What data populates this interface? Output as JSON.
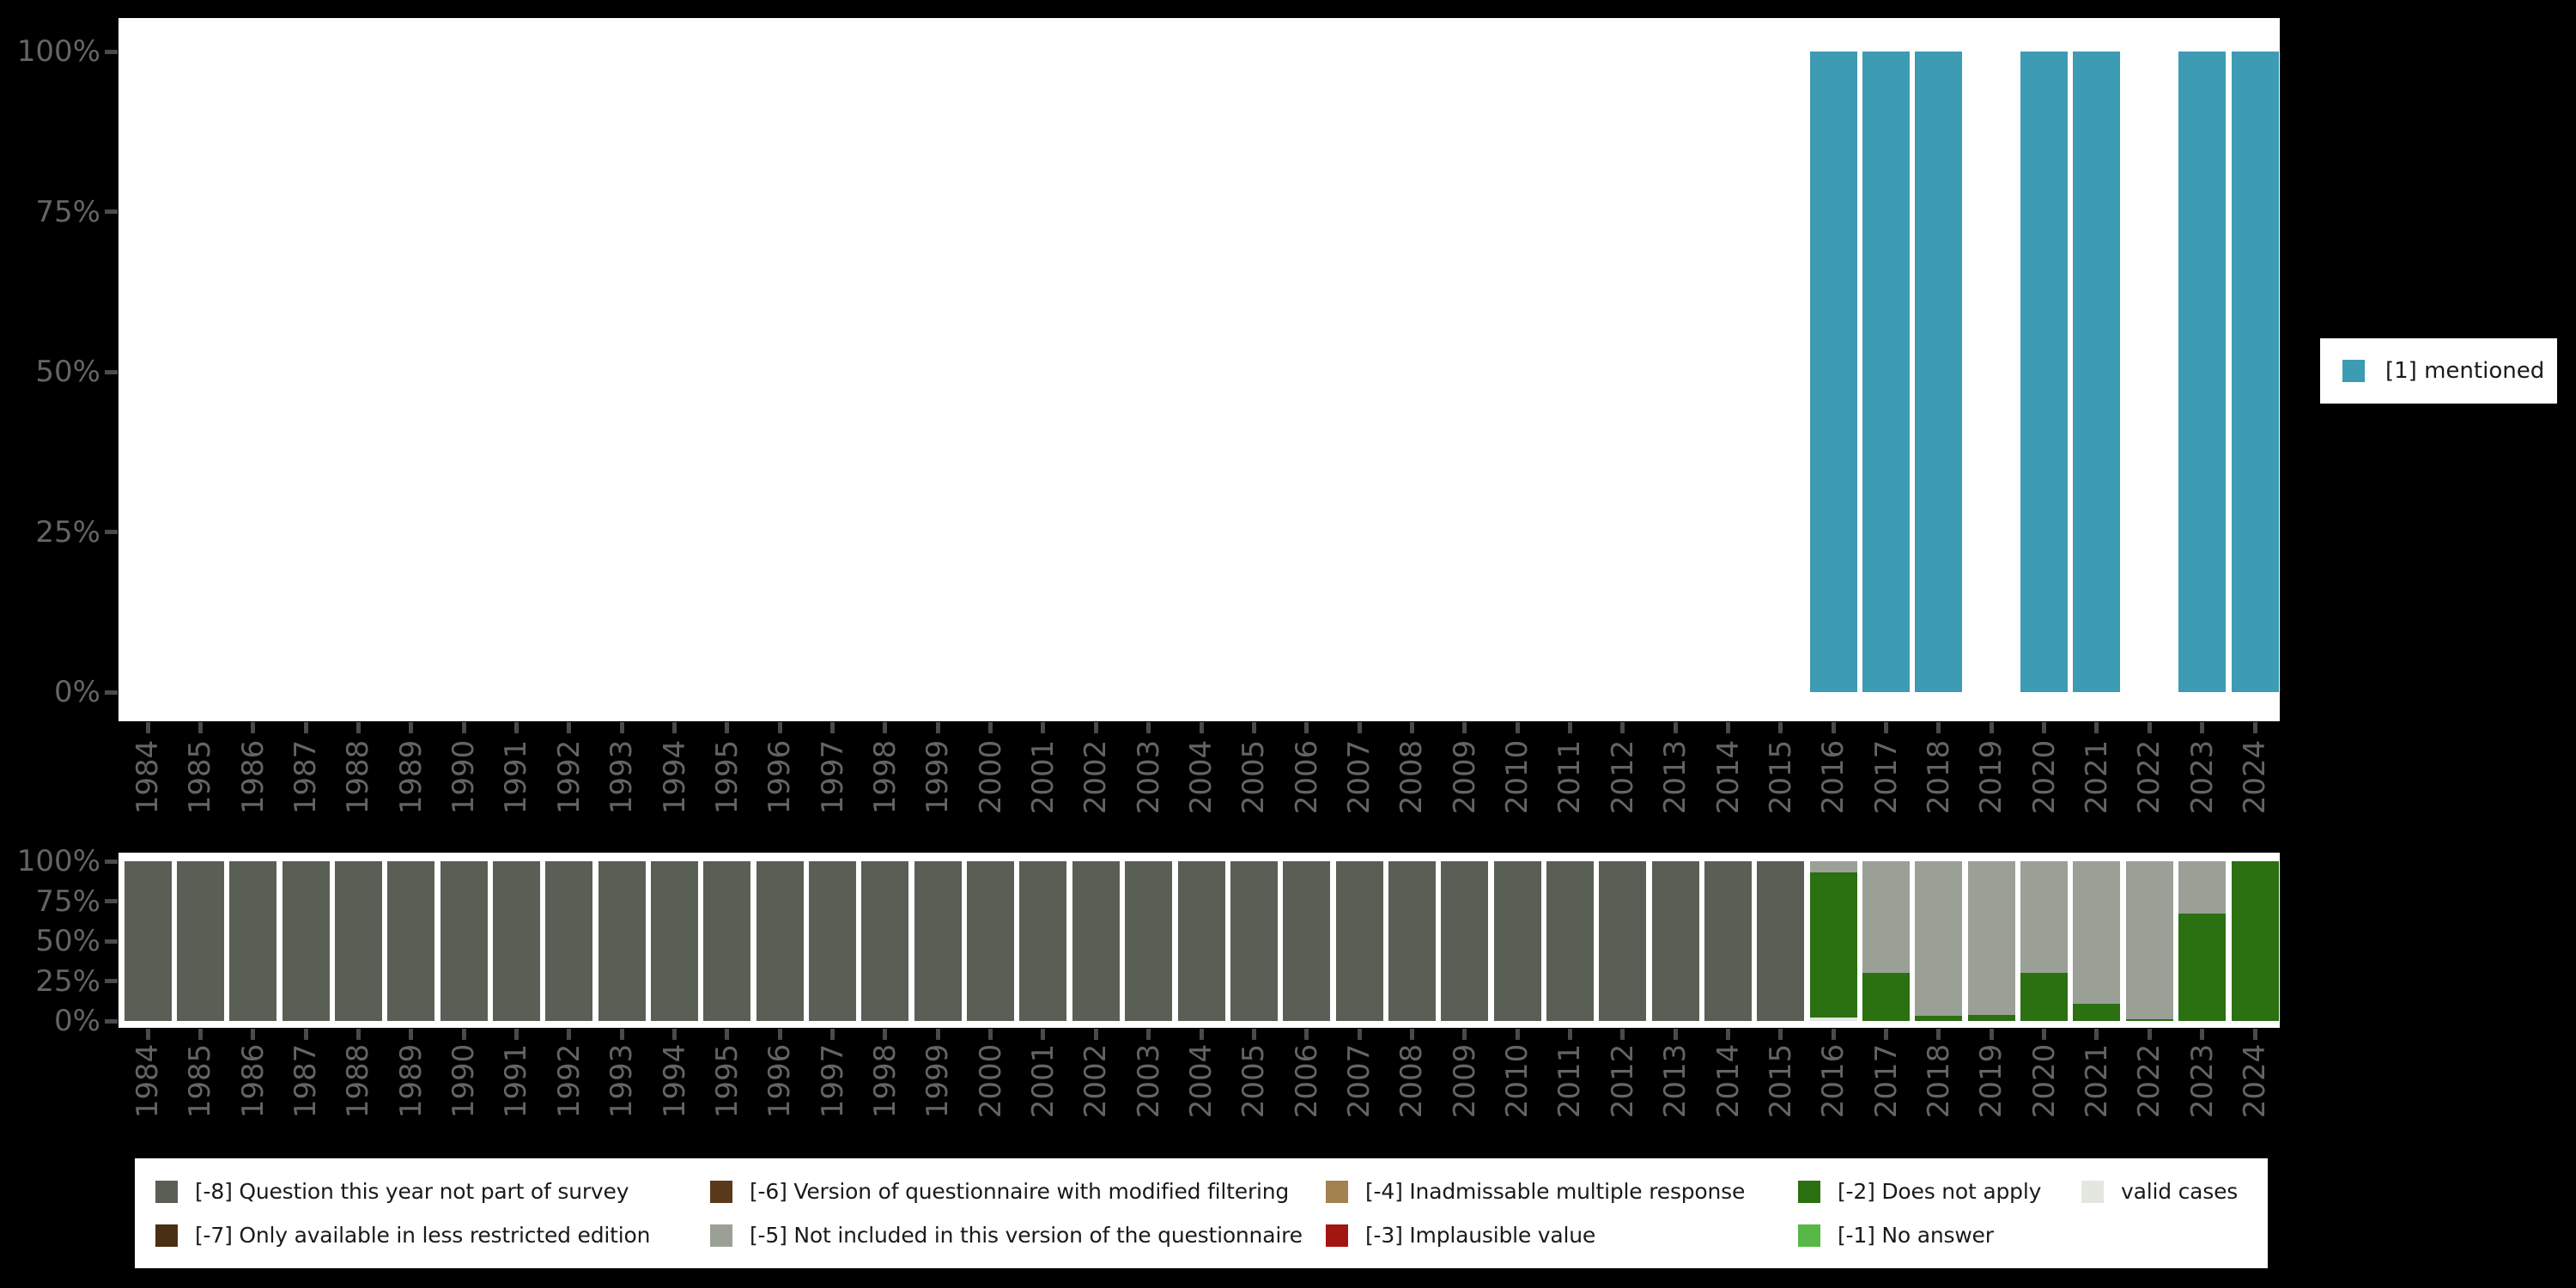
{
  "page": {
    "background": "#000000",
    "panel_color": "#ffffff",
    "axis_label_color": "#646464",
    "axis_tick_color": "#4a4a4a",
    "legend_background": "#ffffff",
    "legend_text_color": "#1a1a1a"
  },
  "x_axis": {
    "categories": [
      "1984",
      "1985",
      "1986",
      "1987",
      "1988",
      "1989",
      "1990",
      "1991",
      "1992",
      "1993",
      "1994",
      "1995",
      "1996",
      "1997",
      "1998",
      "1999",
      "2000",
      "2001",
      "2002",
      "2003",
      "2004",
      "2005",
      "2006",
      "2007",
      "2008",
      "2009",
      "2010",
      "2011",
      "2012",
      "2013",
      "2014",
      "2015",
      "2016",
      "2017",
      "2018",
      "2019",
      "2020",
      "2021",
      "2022",
      "2023",
      "2024"
    ]
  },
  "chart_data": [
    {
      "id": "top",
      "type": "bar",
      "stacked": false,
      "title": "",
      "xlabel": "",
      "ylabel": "",
      "ylim": [
        0,
        100
      ],
      "grid": false,
      "y_ticks": [
        "100%",
        "75%",
        "50%",
        "25%",
        "0%"
      ],
      "legend": {
        "position": "right",
        "items": [
          {
            "label": "[1] mentioned",
            "color": "#3d9bb3"
          }
        ]
      },
      "series": [
        {
          "name": "[1] mentioned",
          "color": "#3d9bb3",
          "values": [
            0,
            0,
            0,
            0,
            0,
            0,
            0,
            0,
            0,
            0,
            0,
            0,
            0,
            0,
            0,
            0,
            0,
            0,
            0,
            0,
            0,
            0,
            0,
            0,
            0,
            0,
            0,
            0,
            0,
            0,
            0,
            0,
            100,
            100,
            100,
            0,
            100,
            100,
            0,
            100,
            100
          ]
        }
      ]
    },
    {
      "id": "bottom",
      "type": "bar",
      "stacked": true,
      "stack_order": "bottom_to_top",
      "title": "",
      "xlabel": "",
      "ylabel": "",
      "ylim": [
        0,
        100
      ],
      "grid": false,
      "y_ticks": [
        "100%",
        "75%",
        "50%",
        "25%",
        "0%"
      ],
      "series": [
        {
          "name": "valid cases",
          "color": "#e3e7e0",
          "values": [
            0,
            0,
            0,
            0,
            0,
            0,
            0,
            0,
            0,
            0,
            0,
            0,
            0,
            0,
            0,
            0,
            0,
            0,
            0,
            0,
            0,
            0,
            0,
            0,
            0,
            0,
            0,
            0,
            0,
            0,
            0,
            0,
            2,
            0,
            0,
            0,
            0,
            0,
            0,
            0,
            0
          ]
        },
        {
          "name": "[-2] Does not apply",
          "color": "#2b7011",
          "values": [
            0,
            0,
            0,
            0,
            0,
            0,
            0,
            0,
            0,
            0,
            0,
            0,
            0,
            0,
            0,
            0,
            0,
            0,
            0,
            0,
            0,
            0,
            0,
            0,
            0,
            0,
            0,
            0,
            0,
            0,
            0,
            0,
            91,
            30,
            3,
            4,
            30,
            11,
            1,
            67,
            100
          ]
        },
        {
          "name": "[-5] Not included in this version of the questionnaire",
          "color": "#9aa096",
          "values": [
            0,
            0,
            0,
            0,
            0,
            0,
            0,
            0,
            0,
            0,
            0,
            0,
            0,
            0,
            0,
            0,
            0,
            0,
            0,
            0,
            0,
            0,
            0,
            0,
            0,
            0,
            0,
            0,
            0,
            0,
            0,
            0,
            7,
            70,
            97,
            96,
            70,
            89,
            99,
            33,
            0
          ]
        },
        {
          "name": "[-8] Question this year not part of survey",
          "color": "#595f54",
          "values": [
            100,
            100,
            100,
            100,
            100,
            100,
            100,
            100,
            100,
            100,
            100,
            100,
            100,
            100,
            100,
            100,
            100,
            100,
            100,
            100,
            100,
            100,
            100,
            100,
            100,
            100,
            100,
            100,
            100,
            100,
            100,
            100,
            0,
            0,
            0,
            0,
            0,
            0,
            0,
            0,
            0
          ]
        }
      ],
      "legend": {
        "position": "bottom",
        "rows": 2,
        "flow": "column",
        "items": [
          {
            "label": "[-8] Question this year not part of survey",
            "color": "#595f54"
          },
          {
            "label": "[-7] Only available in less restricted edition",
            "color": "#4a2f15"
          },
          {
            "label": "[-6] Version of questionnaire with modified filtering",
            "color": "#5a3a1a"
          },
          {
            "label": "[-5] Not included in this version of the questionnaire",
            "color": "#9aa096"
          },
          {
            "label": "[-4] Inadmissable multiple response",
            "color": "#a3824f"
          },
          {
            "label": "[-3] Implausible value",
            "color": "#a21511"
          },
          {
            "label": "[-2] Does not apply",
            "color": "#2b7011"
          },
          {
            "label": "[-1] No answer",
            "color": "#57b747"
          },
          {
            "label": "valid cases",
            "color": "#e3e7e0"
          }
        ]
      }
    }
  ]
}
